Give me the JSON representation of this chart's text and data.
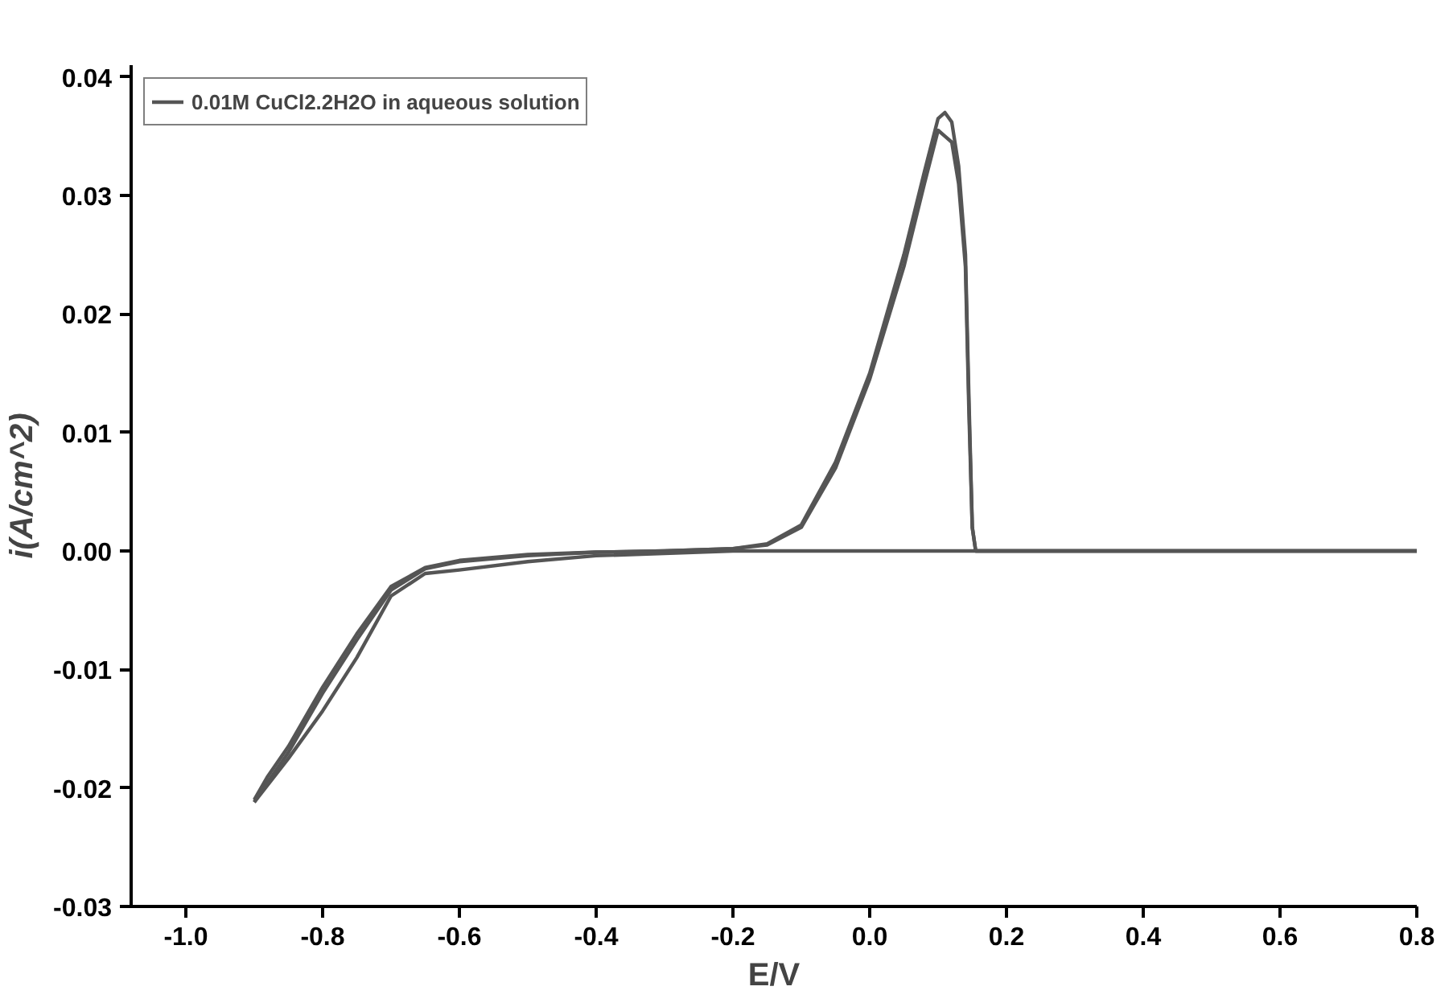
{
  "chart_data": {
    "type": "line",
    "xlabel": "E/V",
    "ylabel": "i(A/cm^2)",
    "xlim": [
      -1.08,
      0.8
    ],
    "ylim": [
      -0.03,
      0.041
    ],
    "xticks": [
      {
        "value": -1.0,
        "label": "-1.0"
      },
      -0.8,
      -0.6,
      -0.4,
      -0.2,
      {
        "value": 0.0,
        "label": "0.0"
      },
      0.2,
      0.4,
      0.6,
      0.8
    ],
    "yticks": [
      -0.03,
      -0.02,
      -0.01,
      {
        "value": 0.0,
        "label": "0.00"
      },
      0.01,
      0.02,
      0.03,
      0.04
    ],
    "grid": false,
    "legend": "top left",
    "line_style": "solid",
    "series": [
      {
        "name": "0.01M CuCl2.2H2O in aqueous solution",
        "color": "#555555",
        "x": [
          -0.9,
          -0.88,
          -0.85,
          -0.8,
          -0.75,
          -0.7,
          -0.65,
          -0.6,
          -0.5,
          -0.4,
          -0.3,
          -0.2,
          -0.15,
          -0.1,
          -0.05,
          0.0,
          0.05,
          0.08,
          0.1,
          0.11,
          0.12,
          0.13,
          0.14,
          0.145,
          0.15,
          0.155,
          0.2,
          0.4,
          0.6,
          0.8
        ],
        "values": [
          -0.021,
          -0.019,
          -0.0165,
          -0.0115,
          -0.007,
          -0.003,
          -0.0014,
          -0.0008,
          -0.0003,
          -0.0001,
          0,
          0.0002,
          0.0005,
          0.002,
          0.007,
          0.0145,
          0.024,
          0.031,
          0.0355,
          0.035,
          0.0345,
          0.031,
          0.024,
          0.012,
          0.002,
          0,
          0,
          0,
          0,
          0
        ]
      },
      {
        "color": "#555555",
        "x": [
          0.8,
          0.6,
          0.4,
          0.2,
          0.0,
          -0.2,
          -0.4,
          -0.5,
          -0.6,
          -0.65,
          -0.7,
          -0.75,
          -0.8,
          -0.85,
          -0.9
        ],
        "values": [
          0,
          0,
          0,
          0,
          0,
          0,
          -0.0004,
          -0.0009,
          -0.0016,
          -0.0019,
          -0.0038,
          -0.009,
          -0.0135,
          -0.0175,
          -0.0212
        ]
      },
      {
        "color": "#555555",
        "x": [
          -0.9,
          -0.88,
          -0.85,
          -0.8,
          -0.75,
          -0.7,
          -0.65,
          -0.6,
          -0.5,
          -0.4,
          -0.3,
          -0.2,
          -0.15,
          -0.1,
          -0.05,
          0.0,
          0.05,
          0.08,
          0.1,
          0.11,
          0.12,
          0.13,
          0.14,
          0.145,
          0.15,
          0.155,
          0.2,
          0.4,
          0.6,
          0.8
        ],
        "values": [
          -0.0212,
          -0.0195,
          -0.017,
          -0.012,
          -0.0075,
          -0.0033,
          -0.0015,
          -0.0009,
          -0.0004,
          -0.0001,
          0,
          0.0002,
          0.0006,
          0.0022,
          0.0075,
          0.015,
          0.025,
          0.032,
          0.0365,
          0.037,
          0.0362,
          0.0325,
          0.025,
          0.013,
          0.002,
          0,
          0,
          0,
          0,
          0
        ]
      }
    ]
  }
}
